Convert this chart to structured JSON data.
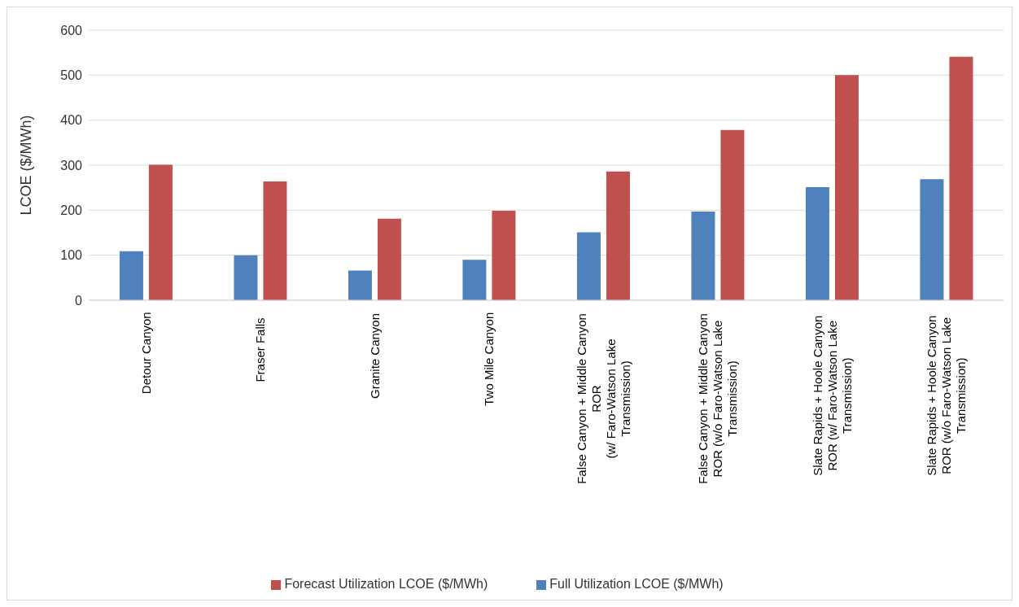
{
  "chart_data": {
    "type": "bar",
    "ylabel": "LCOE ($/MWh)",
    "categories": [
      "Detour Canyon",
      "Fraser Falls",
      "Granite Canyon",
      "Two Mile Canyon",
      "False Canyon + Middle Canyon\nROR\n(w/ Faro-Watson Lake\nTransmission)",
      "False Canyon + Middle Canyon\nROR (w/o Faro-Watson Lake\nTransmission)",
      "Slate Rapids + Hoole Canyon\nROR (w/ Faro-Watson Lake\nTransmission)",
      "Slate Rapids + Hoole Canyon\nROR (w/o Faro-Watson Lake\nTransmission)"
    ],
    "series": [
      {
        "name": "Full Utilization LCOE ($/MWh)",
        "color": "#4f81bd",
        "values": [
          109,
          100,
          66,
          90,
          151,
          197,
          251,
          269
        ]
      },
      {
        "name": "Forecast Utilization LCOE ($/MWh)",
        "color": "#c0504d",
        "values": [
          301,
          264,
          181,
          199,
          286,
          378,
          500,
          541
        ]
      }
    ],
    "ylim": [
      0,
      600
    ],
    "yticks": [
      0,
      100,
      200,
      300,
      400,
      500,
      600
    ],
    "grid": "y",
    "legend": "bottom"
  }
}
